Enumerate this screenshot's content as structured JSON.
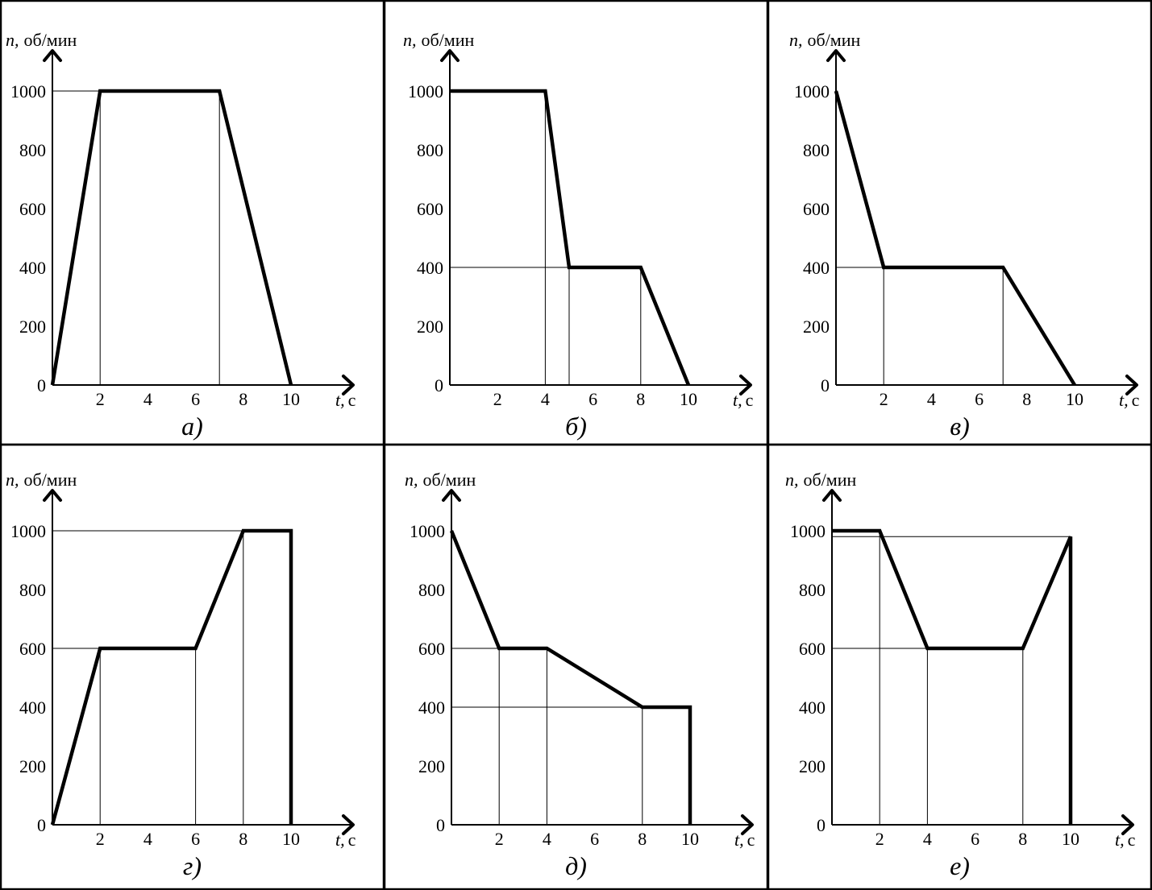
{
  "chart_data": [
    {
      "type": "line",
      "caption": "а)",
      "ylabel_var": "n,",
      "ylabel_unit": "об/мин",
      "xlabel_var": "t,",
      "xlabel_unit": "с",
      "x_ticks": [
        "2",
        "4",
        "6",
        "8",
        "10"
      ],
      "y_ticks": [
        "0",
        "200",
        "400",
        "600",
        "800",
        "1000"
      ],
      "xlim": [
        0,
        12.6
      ],
      "ylim": [
        0,
        1000
      ],
      "grid": false,
      "series": [
        {
          "x": [
            0,
            2,
            7,
            10
          ],
          "y": [
            0,
            1000,
            1000,
            0
          ]
        }
      ]
    },
    {
      "type": "line",
      "caption": "б)",
      "ylabel_var": "n,",
      "ylabel_unit": "об/мин",
      "xlabel_var": "t,",
      "xlabel_unit": "с",
      "x_ticks": [
        "2",
        "4",
        "6",
        "8",
        "10"
      ],
      "y_ticks": [
        "0",
        "200",
        "400",
        "600",
        "800",
        "1000"
      ],
      "xlim": [
        0,
        12.6
      ],
      "ylim": [
        0,
        1000
      ],
      "grid": false,
      "series": [
        {
          "x": [
            0,
            4,
            5,
            8,
            10
          ],
          "y": [
            1000,
            1000,
            400,
            400,
            0
          ]
        }
      ]
    },
    {
      "type": "line",
      "caption": "в)",
      "ylabel_var": "n,",
      "ylabel_unit": "об/мин",
      "xlabel_var": "t,",
      "xlabel_unit": "с",
      "x_ticks": [
        "2",
        "4",
        "6",
        "8",
        "10"
      ],
      "y_ticks": [
        "0",
        "200",
        "400",
        "600",
        "800",
        "1000"
      ],
      "xlim": [
        0,
        12.6
      ],
      "ylim": [
        0,
        1000
      ],
      "grid": false,
      "series": [
        {
          "x": [
            0,
            2,
            7,
            10
          ],
          "y": [
            1000,
            400,
            400,
            0
          ]
        }
      ]
    },
    {
      "type": "line",
      "caption": "г)",
      "ylabel_var": "n,",
      "ylabel_unit": "об/мин",
      "xlabel_var": "t,",
      "xlabel_unit": "с",
      "x_ticks": [
        "2",
        "4",
        "6",
        "8",
        "10"
      ],
      "y_ticks": [
        "0",
        "200",
        "400",
        "600",
        "800",
        "1000"
      ],
      "xlim": [
        0,
        12.6
      ],
      "ylim": [
        0,
        1000
      ],
      "grid": false,
      "series": [
        {
          "x": [
            0,
            2,
            6,
            8,
            10,
            10
          ],
          "y": [
            0,
            600,
            600,
            1000,
            1000,
            0
          ]
        }
      ]
    },
    {
      "type": "line",
      "caption": "д)",
      "ylabel_var": "n,",
      "ylabel_unit": "об/мин",
      "xlabel_var": "t,",
      "xlabel_unit": "с",
      "x_ticks": [
        "2",
        "4",
        "6",
        "8",
        "10"
      ],
      "y_ticks": [
        "0",
        "200",
        "400",
        "600",
        "800",
        "1000"
      ],
      "xlim": [
        0,
        12.6
      ],
      "ylim": [
        0,
        1000
      ],
      "grid": false,
      "series": [
        {
          "x": [
            0,
            2,
            4,
            8,
            10,
            10
          ],
          "y": [
            1000,
            600,
            600,
            400,
            400,
            0
          ]
        }
      ]
    },
    {
      "type": "line",
      "caption": "е)",
      "ylabel_var": "n,",
      "ylabel_unit": "об/мин",
      "xlabel_var": "t,",
      "xlabel_unit": "с",
      "x_ticks": [
        "2",
        "4",
        "6",
        "8",
        "10"
      ],
      "y_ticks": [
        "0",
        "200",
        "400",
        "600",
        "800",
        "1000"
      ],
      "xlim": [
        0,
        12.6
      ],
      "ylim": [
        0,
        1000
      ],
      "grid": false,
      "series": [
        {
          "x": [
            0,
            2,
            4,
            8,
            10,
            10
          ],
          "y": [
            1000,
            1000,
            600,
            600,
            980,
            0
          ]
        }
      ]
    }
  ]
}
